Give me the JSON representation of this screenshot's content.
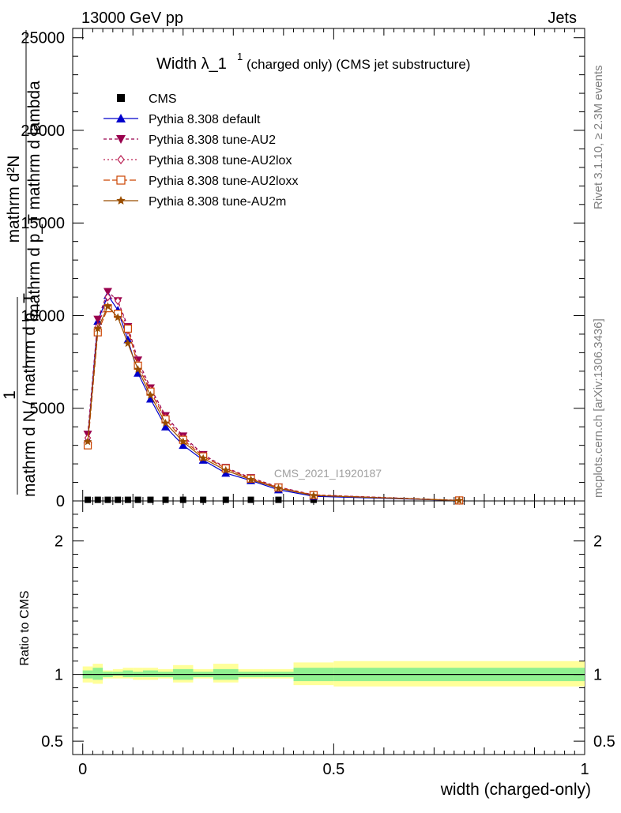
{
  "header": {
    "left": "13000 GeV pp",
    "right": "Jets"
  },
  "side": {
    "rivet": "Rivet 3.1.10, ≥ 2.3M events",
    "mcplots": "mcplots.cern.ch [arXiv:1306.3436]"
  },
  "chart_data": [
    {
      "type": "line",
      "title_main": "Width λ_1",
      "title_sup": "1",
      "title_rest": "(charged only) (CMS jet substructure)",
      "watermark": "CMS_2021_I1920187",
      "ylabel_numer": "mathrm d²N",
      "ylabel_denom": "mathrm d p_T mathrm d lambda",
      "ylabel_pre": "1",
      "ylabel_pre_denom": "mathrm d N / mathrm d p_T",
      "xlim": [
        -0.02,
        1.0
      ],
      "ylim": [
        0,
        25500
      ],
      "yticks": [
        0,
        5000,
        10000,
        15000,
        20000,
        25000
      ],
      "ytick_labels": [
        "0",
        "5000",
        "10000",
        "15000",
        "20000",
        "25000"
      ],
      "legend_position": "top-left",
      "x": [
        0.01,
        0.03,
        0.05,
        0.07,
        0.09,
        0.11,
        0.135,
        0.165,
        0.2,
        0.24,
        0.285,
        0.335,
        0.39,
        0.46,
        0.75
      ],
      "series": [
        {
          "name": "CMS",
          "color": "#000000",
          "marker": "square",
          "dash": "none",
          "values": [
            60,
            60,
            60,
            60,
            60,
            60,
            60,
            60,
            60,
            60,
            60,
            60,
            60,
            60,
            60
          ]
        },
        {
          "name": "Pythia 8.308 default",
          "color": "#0000cc",
          "marker": "triangle-up",
          "dash": "none",
          "values": [
            3300,
            9700,
            11100,
            10300,
            8700,
            6900,
            5500,
            4000,
            3000,
            2200,
            1500,
            1100,
            600,
            250,
            20
          ]
        },
        {
          "name": "Pythia 8.308 tune-AU2",
          "color": "#99004d",
          "marker": "triangle-down",
          "dash": "4,3",
          "values": [
            3600,
            9800,
            11300,
            10800,
            9400,
            7600,
            6100,
            4600,
            3500,
            2500,
            1800,
            1250,
            750,
            330,
            30
          ]
        },
        {
          "name": "Pythia 8.308 tune-AU2lox",
          "color": "#bb2255",
          "marker": "diamond",
          "dash": "2,3",
          "values": [
            3400,
            9400,
            11000,
            10800,
            9200,
            7400,
            6000,
            4500,
            3400,
            2450,
            1750,
            1200,
            720,
            310,
            25
          ]
        },
        {
          "name": "Pythia 8.308 tune-AU2loxx",
          "color": "#cc4400",
          "marker": "square-open",
          "dash": "8,3",
          "values": [
            3000,
            9100,
            10400,
            10100,
            9300,
            7300,
            5900,
            4400,
            3300,
            2400,
            1750,
            1200,
            720,
            310,
            25
          ]
        },
        {
          "name": "Pythia 8.308 tune-AU2m",
          "color": "#994d00",
          "marker": "star",
          "dash": "none",
          "values": [
            3200,
            9300,
            10500,
            9900,
            8500,
            7100,
            5700,
            4200,
            3200,
            2300,
            1650,
            1150,
            680,
            290,
            22
          ]
        }
      ]
    },
    {
      "type": "area",
      "ylabel": "Ratio to CMS",
      "xlabel": "width (charged-only)",
      "xlim": [
        -0.02,
        1.0
      ],
      "ylim": [
        0.4,
        2.3
      ],
      "yticks": [
        0.5,
        1,
        2
      ],
      "ytick_labels": [
        "0.5",
        "1",
        "2"
      ],
      "xticks": [
        0,
        0.5,
        1
      ],
      "xtick_labels": [
        "0",
        "0.5",
        "1"
      ],
      "reference_line": 1,
      "bin_edges": [
        0,
        0.02,
        0.04,
        0.06,
        0.08,
        0.1,
        0.12,
        0.15,
        0.18,
        0.22,
        0.26,
        0.31,
        0.36,
        0.42,
        0.5,
        1.0
      ],
      "band_yellow_lo": [
        0.94,
        0.93,
        0.97,
        0.97,
        0.97,
        0.96,
        0.96,
        0.97,
        0.94,
        0.97,
        0.94,
        0.97,
        0.97,
        0.92,
        0.91
      ],
      "band_yellow_hi": [
        1.06,
        1.08,
        1.03,
        1.04,
        1.05,
        1.05,
        1.05,
        1.04,
        1.07,
        1.04,
        1.08,
        1.04,
        1.04,
        1.09,
        1.1
      ],
      "band_green_lo": [
        0.97,
        0.96,
        0.98,
        0.99,
        0.98,
        0.98,
        0.98,
        0.98,
        0.96,
        0.98,
        0.96,
        0.98,
        0.98,
        0.95,
        0.95
      ],
      "band_green_hi": [
        1.03,
        1.05,
        1.02,
        1.02,
        1.03,
        1.02,
        1.03,
        1.02,
        1.04,
        1.02,
        1.04,
        1.02,
        1.02,
        1.05,
        1.05
      ]
    }
  ],
  "colors": {
    "yellow_band": "#ffff99",
    "green_band": "#90f090"
  }
}
